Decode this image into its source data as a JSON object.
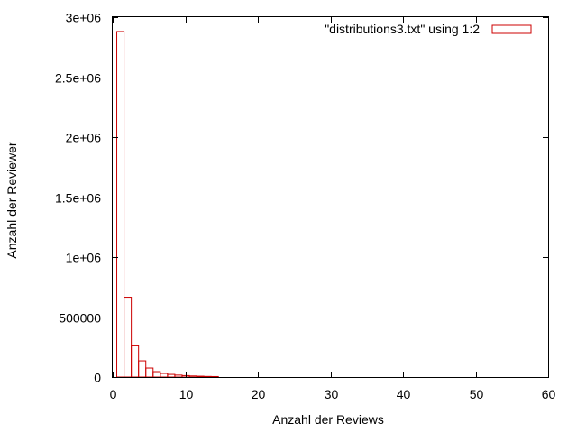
{
  "chart_data": {
    "type": "bar",
    "style": "histogram-outline",
    "xlabel": "Anzahl der Reviews",
    "ylabel": "Anzahl der Reviewer",
    "xlim": [
      0,
      60
    ],
    "ylim": [
      0,
      3000000
    ],
    "xticks": [
      0,
      10,
      20,
      30,
      40,
      50,
      60
    ],
    "xtick_labels": [
      "0",
      "10",
      "20",
      "30",
      "40",
      "50",
      "60"
    ],
    "yticks": [
      0,
      500000,
      1000000,
      1500000,
      2000000,
      2500000,
      3000000
    ],
    "ytick_labels": [
      "0",
      "500000",
      "1e+06",
      "1.5e+06",
      "2e+06",
      "2.5e+06",
      "3e+06"
    ],
    "grid": false,
    "legend_position": "top-right",
    "series": [
      {
        "name": "\"distributions3.txt\" using 1:2",
        "color": "#cc0000",
        "x": [
          1,
          2,
          3,
          4,
          5,
          6,
          7,
          8,
          9,
          10,
          11,
          12,
          13,
          14
        ],
        "values": [
          2880000,
          665000,
          260000,
          135000,
          75000,
          45000,
          30000,
          22000,
          16000,
          12000,
          9000,
          7000,
          5000,
          4000
        ]
      }
    ]
  }
}
